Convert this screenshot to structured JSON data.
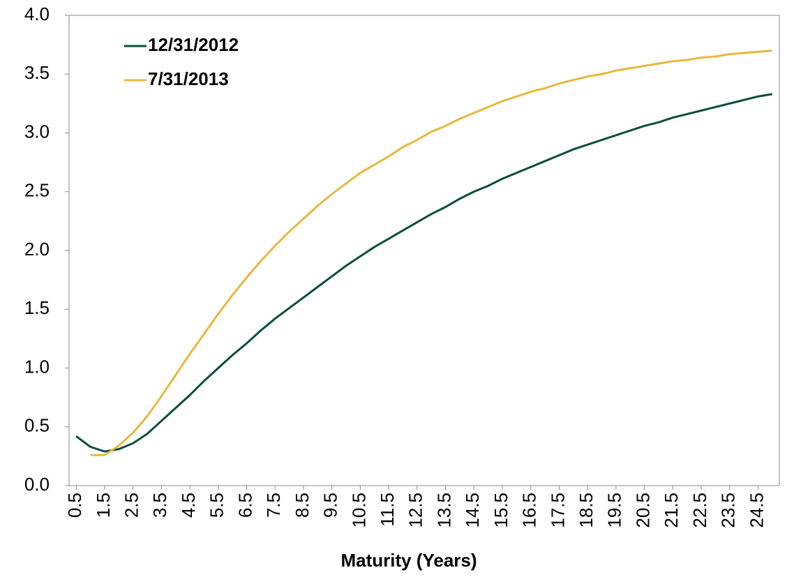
{
  "chart_data": {
    "type": "line",
    "xlabel": "Maturity (Years)",
    "x": [
      0.5,
      1,
      1.5,
      2,
      2.5,
      3,
      3.5,
      4,
      4.5,
      5,
      5.5,
      6,
      6.5,
      7,
      7.5,
      8,
      8.5,
      9,
      9.5,
      10,
      10.5,
      11,
      11.5,
      12,
      12.5,
      13,
      13.5,
      14,
      14.5,
      15,
      15.5,
      16,
      16.5,
      17,
      17.5,
      18,
      18.5,
      19,
      19.5,
      20,
      20.5,
      21,
      21.5,
      22,
      22.5,
      23,
      23.5,
      24,
      24.5,
      25
    ],
    "series": [
      {
        "name": "12/31/2012",
        "color": "#0b4d3c",
        "values": [
          0.42,
          0.33,
          0.29,
          0.31,
          0.36,
          0.44,
          0.55,
          0.66,
          0.77,
          0.89,
          1.0,
          1.11,
          1.21,
          1.32,
          1.42,
          1.51,
          1.6,
          1.69,
          1.78,
          1.87,
          1.95,
          2.03,
          2.1,
          2.17,
          2.24,
          2.31,
          2.37,
          2.44,
          2.5,
          2.55,
          2.61,
          2.66,
          2.71,
          2.76,
          2.81,
          2.86,
          2.9,
          2.94,
          2.98,
          3.02,
          3.06,
          3.09,
          3.13,
          3.16,
          3.19,
          3.22,
          3.25,
          3.28,
          3.31,
          3.33
        ]
      },
      {
        "name": "7/31/2013",
        "color": "#e8b83a",
        "values": [
          null,
          0.26,
          0.26,
          0.34,
          0.45,
          0.59,
          0.76,
          0.94,
          1.12,
          1.29,
          1.46,
          1.62,
          1.77,
          1.91,
          2.04,
          2.16,
          2.27,
          2.38,
          2.48,
          2.57,
          2.66,
          2.73,
          2.8,
          2.88,
          2.94,
          3.01,
          3.06,
          3.12,
          3.17,
          3.22,
          3.27,
          3.31,
          3.35,
          3.38,
          3.42,
          3.45,
          3.48,
          3.5,
          3.53,
          3.55,
          3.57,
          3.59,
          3.61,
          3.62,
          3.64,
          3.65,
          3.67,
          3.68,
          3.69,
          3.7
        ]
      }
    ],
    "xlim": [
      0.25,
      25.25
    ],
    "xticks": [
      0.5,
      1.5,
      2.5,
      3.5,
      4.5,
      5.5,
      6.5,
      7.5,
      8.5,
      9.5,
      10.5,
      11.5,
      12.5,
      13.5,
      14.5,
      15.5,
      16.5,
      17.5,
      18.5,
      19.5,
      20.5,
      21.5,
      22.5,
      23.5,
      24.5
    ],
    "ylim": [
      0,
      4
    ],
    "yticks": [
      {
        "value": 0,
        "label": "0.0"
      },
      0.5,
      {
        "value": 1,
        "label": "1.0"
      },
      1.5,
      {
        "value": 2,
        "label": "2.0"
      },
      2.5,
      {
        "value": 3,
        "label": "3.0"
      },
      3.5,
      {
        "value": 4,
        "label": "4.0"
      }
    ],
    "grid": false,
    "legend": "upper left"
  }
}
